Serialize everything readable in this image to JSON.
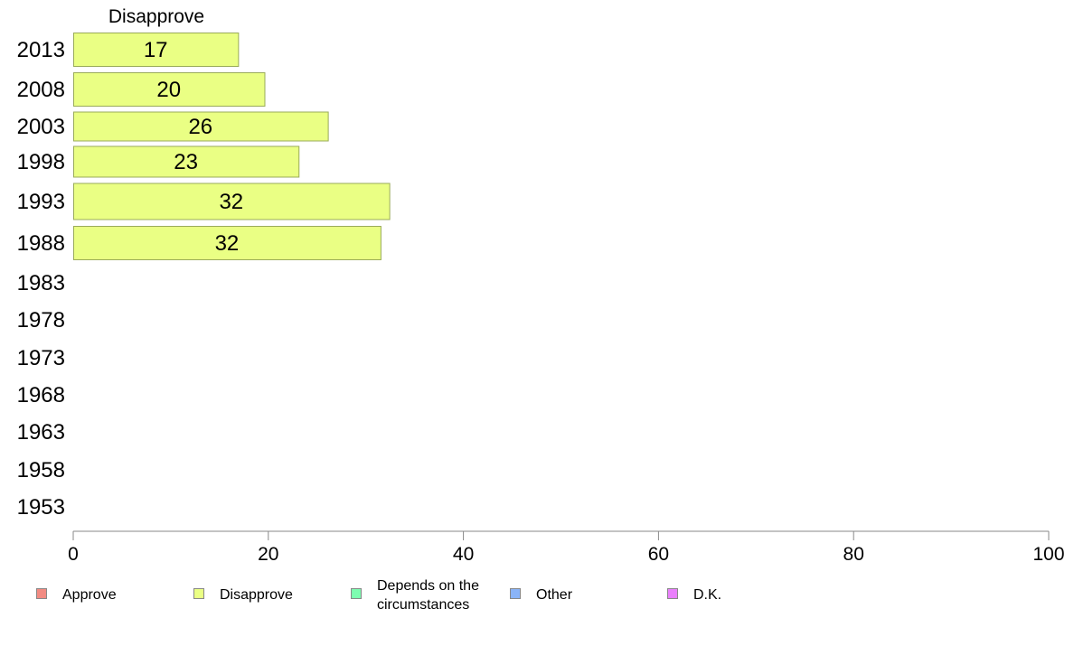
{
  "chart_data": {
    "type": "bar",
    "orientation": "horizontal",
    "header_label": "Disapprove",
    "categories": [
      "2013",
      "2008",
      "2003",
      "1998",
      "1993",
      "1988",
      "1983",
      "1978",
      "1973",
      "1968",
      "1963",
      "1958",
      "1953"
    ],
    "series": [
      {
        "name": "Disapprove",
        "color": "#eaff84",
        "values": [
          17,
          20,
          26,
          23,
          32,
          32,
          null,
          null,
          null,
          null,
          null,
          null,
          null
        ]
      }
    ],
    "bar_values_exact": [
      16.9,
      19.6,
      26.1,
      23.1,
      32.4,
      31.5,
      null,
      null,
      null,
      null,
      null,
      null,
      null
    ],
    "xlim": [
      0,
      100
    ],
    "x_ticks": [
      "0",
      "20",
      "40",
      "60",
      "80",
      "100"
    ],
    "grid": false,
    "legend_position": "bottom",
    "legend": [
      {
        "label": "Approve",
        "color": "#f28b82"
      },
      {
        "label": "Disapprove",
        "color": "#eaff84"
      },
      {
        "label": "Depends on the\ncircumstances",
        "color": "#7dfcb0"
      },
      {
        "label": "Other",
        "color": "#8ab4f8"
      },
      {
        "label": "D.K.",
        "color": "#ea80fc"
      }
    ]
  }
}
